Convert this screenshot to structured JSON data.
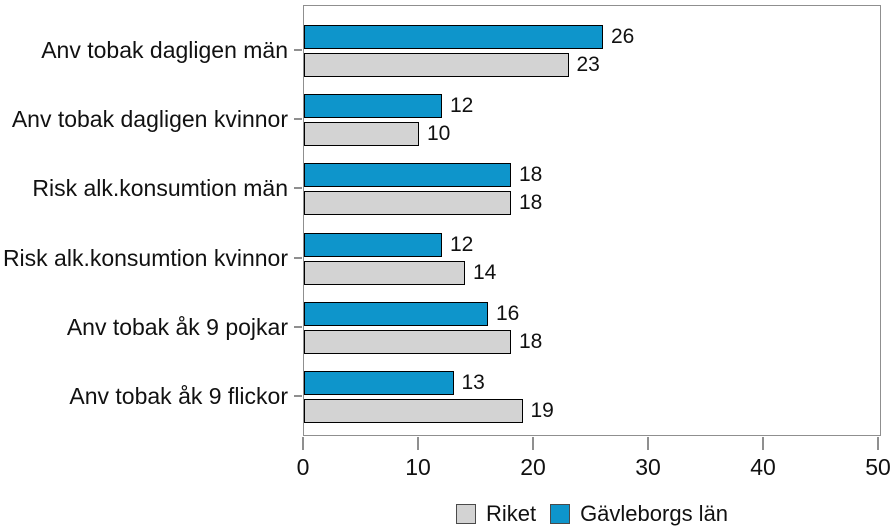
{
  "chart_data": {
    "type": "bar",
    "orientation": "horizontal",
    "title": "",
    "categories": [
      "Anv tobak dagligen män",
      "Anv tobak dagligen kvinnor",
      "Risk alk.konsumtion män",
      "Risk alk.konsumtion kvinnor",
      "Anv tobak åk 9 pojkar",
      "Anv tobak åk 9 flickor"
    ],
    "series": [
      {
        "name": "Gävleborgs län",
        "color": "#0e95cb",
        "values": [
          26,
          12,
          18,
          12,
          16,
          13
        ]
      },
      {
        "name": "Riket",
        "color": "#d3d3d3",
        "values": [
          23,
          10,
          18,
          14,
          18,
          19
        ]
      }
    ],
    "xlim": [
      0,
      50
    ],
    "xticks": [
      0,
      10,
      20,
      30,
      40,
      50
    ],
    "value_labels": true,
    "grid": false,
    "legend": {
      "position": "bottom",
      "order": [
        "Riket",
        "Gävleborgs län"
      ]
    }
  }
}
